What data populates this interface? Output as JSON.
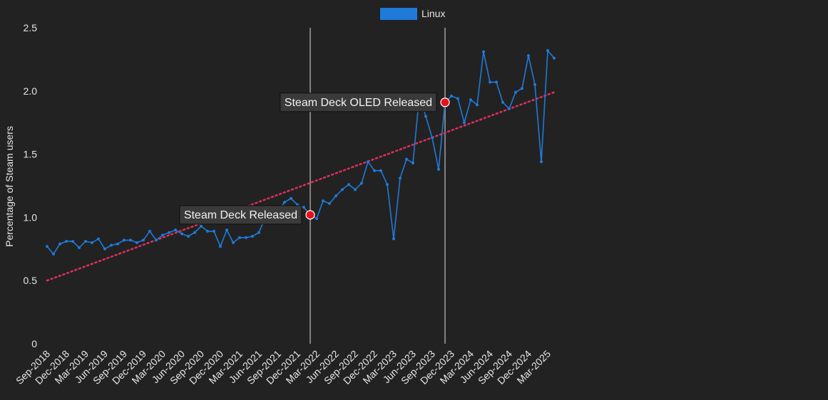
{
  "chart_data": {
    "type": "line",
    "ylabel": "Percentage of Steam users",
    "ylim": [
      0,
      2.5
    ],
    "yticks": [
      "0",
      "0.5",
      "1.0",
      "1.5",
      "2.0",
      "2.5"
    ],
    "xtick_labels": [
      "Sep-2018",
      "Dec-2018",
      "Mar-2019",
      "Jun-2019",
      "Sep-2019",
      "Dec-2019",
      "Mar-2020",
      "Jun-2020",
      "Sep-2020",
      "Dec-2020",
      "Mar-2021",
      "Jun-2021",
      "Sep-2021",
      "Dec-2021",
      "Mar-2022",
      "Jun-2022",
      "Sep-2022",
      "Dec-2022",
      "Mar-2023",
      "Jun-2023",
      "Sep-2023",
      "Dec-2023",
      "Mar-2024",
      "Jun-2024",
      "Sep-2024",
      "Dec-2024",
      "Mar-2025"
    ],
    "x_start": "Sep-2018",
    "legend": {
      "position": "top-center",
      "entries": [
        "Linux"
      ]
    },
    "series": [
      {
        "name": "Linux",
        "color": "#1f7ad9",
        "values": [
          0.77,
          0.71,
          0.79,
          0.81,
          0.81,
          0.76,
          0.81,
          0.8,
          0.83,
          0.75,
          0.78,
          0.79,
          0.82,
          0.82,
          0.8,
          0.82,
          0.89,
          0.82,
          0.86,
          0.88,
          0.9,
          0.87,
          0.85,
          0.88,
          0.93,
          0.89,
          0.89,
          0.77,
          0.9,
          0.8,
          0.84,
          0.84,
          0.85,
          0.88,
          1.0,
          1.05,
          1.05,
          1.12,
          1.15,
          1.1,
          1.08,
          1.02,
          0.99,
          1.13,
          1.11,
          1.17,
          1.22,
          1.26,
          1.22,
          1.27,
          1.44,
          1.37,
          1.37,
          1.26,
          0.83,
          1.31,
          1.46,
          1.43,
          1.96,
          1.8,
          1.63,
          1.38,
          1.91,
          1.96,
          1.94,
          1.75,
          1.93,
          1.89,
          2.31,
          2.07,
          2.07,
          1.91,
          1.86,
          1.99,
          2.02,
          2.28,
          2.05,
          1.44,
          2.32,
          2.26
        ]
      }
    ],
    "trendline": {
      "color": "#e0305a",
      "style": "dotted",
      "start_value": 0.5,
      "end_value": 1.99
    },
    "annotations": [
      {
        "label": "Steam Deck Released",
        "x": "Feb-2022",
        "value": 1.02
      },
      {
        "label": "Steam Deck OLED Released",
        "x": "Nov-2023",
        "value": 1.91
      }
    ],
    "colors": {
      "background": "#222222",
      "marker_fill": "#e8101a",
      "vline": "#808080",
      "text": "#e6e6e6"
    }
  }
}
